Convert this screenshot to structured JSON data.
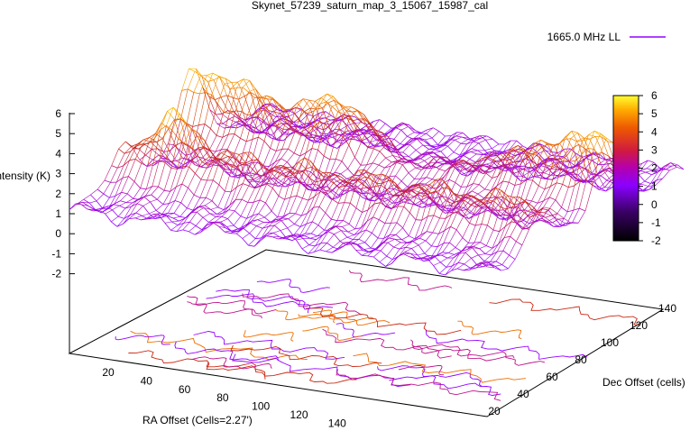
{
  "title": "Skynet_57239_saturn_map_3_15067_15987_cal",
  "legend": {
    "label": "1665.0 MHz LL",
    "placement": "top-right"
  },
  "chart_data": {
    "type": "surface",
    "title": "Skynet_57239_saturn_map_3_15067_15987_cal",
    "zlabel": "Intensity (K)",
    "xlabel": "RA Offset (Cells=2.27')",
    "ylabel": "Dec Offset (cells)",
    "series": [
      {
        "name": "1665.0 MHz LL"
      }
    ],
    "z_ticks": [
      "6",
      "5",
      "4",
      "3",
      "2",
      "1",
      "0",
      "-1",
      "-2"
    ],
    "x_ticks": [
      "20",
      "40",
      "60",
      "80",
      "100",
      "120",
      "140"
    ],
    "y_ticks": [
      "20",
      "40",
      "60",
      "80",
      "100",
      "120",
      "140"
    ],
    "zlim": [
      -2,
      6
    ],
    "colorbar": {
      "min": -2,
      "max": 6,
      "ticks": [
        "6",
        "5",
        "4",
        "3",
        "2",
        "1",
        "0",
        "-1",
        "-2"
      ]
    },
    "contours_on_base": true,
    "colors": {
      "low": "#000000",
      "mid": "#9400ff",
      "high_mid": "#cc3300",
      "high": "#ffee00"
    }
  }
}
